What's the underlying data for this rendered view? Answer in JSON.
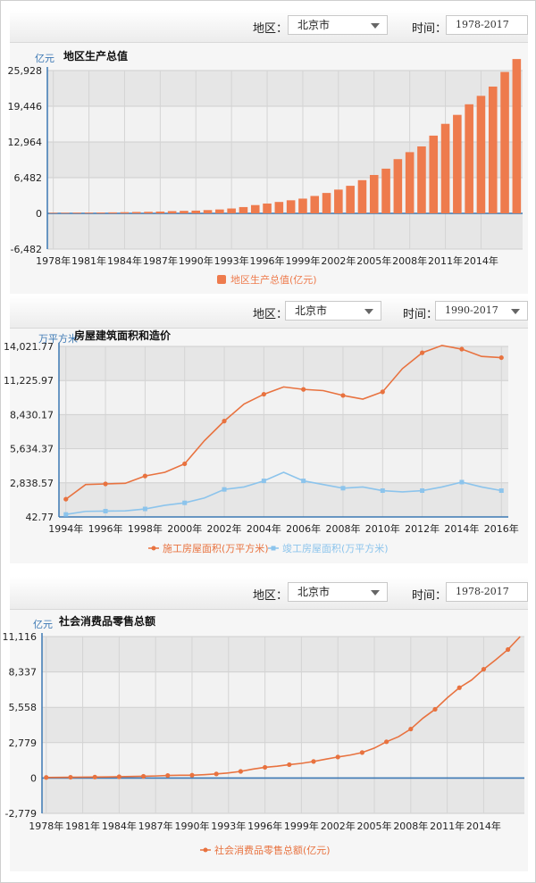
{
  "controls": {
    "region_label": "地区：",
    "region_value": "北京市",
    "time_label": "时间：",
    "range_1": "1978-2017",
    "range_2": "1990-2017",
    "range_3": "1978-2017"
  },
  "colors": {
    "orange": "#ee7b4d",
    "line_orange": "#e8723f",
    "blue": "#8cc4ec",
    "axis_blue": "#3c78b4",
    "grid_band": "#e6e6e6",
    "plot_bg": "#f2f2f2"
  },
  "chart_data": [
    {
      "type": "bar",
      "unit": "亿元",
      "title": "地区生产总值",
      "legend": [
        "地区生产总值(亿元)"
      ],
      "ylim": [
        -6482,
        25928
      ],
      "yticks": [
        -6482,
        0,
        6482,
        12964,
        19446,
        25928
      ],
      "ytick_labels": [
        "-6,482",
        "0",
        "6,482",
        "12,964",
        "19,446",
        "25,928"
      ],
      "xtick_labels": [
        "1978年",
        "1981年",
        "1984年",
        "1987年",
        "1990年",
        "1993年",
        "1996年",
        "1999年",
        "2002年",
        "2005年",
        "2008年",
        "2011年",
        "2014年"
      ],
      "x": [
        1978,
        1979,
        1980,
        1981,
        1982,
        1983,
        1984,
        1985,
        1986,
        1987,
        1988,
        1989,
        1990,
        1991,
        1992,
        1993,
        1994,
        1995,
        1996,
        1997,
        1998,
        1999,
        2000,
        2001,
        2002,
        2003,
        2004,
        2005,
        2006,
        2007,
        2008,
        2009,
        2010,
        2011,
        2012,
        2013,
        2014,
        2015,
        2016,
        2017
      ],
      "series": [
        {
          "name": "地区生产总值(亿元)",
          "values": [
            109,
            120,
            139,
            139,
            154,
            183,
            217,
            257,
            285,
            327,
            410,
            456,
            501,
            599,
            709,
            887,
            1146,
            1507,
            1789,
            2075,
            2377,
            2679,
            3162,
            3708,
            4316,
            5007,
            6033,
            6970,
            8118,
            9847,
            11115,
            12153,
            14114,
            16252,
            17879,
            19801,
            21331,
            23015,
            25669,
            28015
          ]
        }
      ]
    },
    {
      "type": "line",
      "unit": "万平方米",
      "title": "房屋建筑面积和造价",
      "legend": [
        "施工房屋面积(万平方米)",
        "竣工房屋面积(万平方米)"
      ],
      "ylim": [
        42.77,
        14021.77
      ],
      "yticks": [
        42.77,
        2838.57,
        5634.37,
        8430.17,
        11225.97,
        14021.77
      ],
      "ytick_labels": [
        "42.77",
        "2,838.57",
        "5,634.37",
        "8,430.17",
        "11,225.97",
        "14,021.77"
      ],
      "xtick_labels": [
        "1994年",
        "1996年",
        "1998年",
        "2000年",
        "2002年",
        "2004年",
        "2006年",
        "2008年",
        "2010年",
        "2012年",
        "2014年",
        "2016年"
      ],
      "x": [
        1994,
        1995,
        1996,
        1997,
        1998,
        1999,
        2000,
        2001,
        2002,
        2003,
        2004,
        2005,
        2006,
        2007,
        2008,
        2009,
        2010,
        2011,
        2012,
        2013,
        2014,
        2015,
        2016
      ],
      "series": [
        {
          "name": "施工房屋面积(万平方米)",
          "values": [
            1500,
            2700,
            2750,
            2800,
            3400,
            3700,
            4400,
            6300,
            7900,
            9300,
            10100,
            10700,
            10500,
            10400,
            10000,
            9700,
            10300,
            12200,
            13500,
            14100,
            13800,
            13200,
            13100
          ]
        },
        {
          "name": "竣工房屋面积(万平方米)",
          "values": [
            250,
            500,
            520,
            540,
            700,
            1000,
            1200,
            1600,
            2300,
            2500,
            3000,
            3700,
            3000,
            2700,
            2400,
            2500,
            2200,
            2100,
            2200,
            2500,
            2900,
            2500,
            2200
          ]
        }
      ]
    },
    {
      "type": "line",
      "unit": "亿元",
      "title": "社会消费品零售总额",
      "legend": [
        "社会消费品零售总额(亿元)"
      ],
      "ylim": [
        -2779,
        11116
      ],
      "yticks": [
        -2779,
        0,
        2779,
        5558,
        8337,
        11116
      ],
      "ytick_labels": [
        "-2,779",
        "0",
        "2,779",
        "5,558",
        "8,337",
        "11,116"
      ],
      "xtick_labels": [
        "1978年",
        "1981年",
        "1984年",
        "1987年",
        "1990年",
        "1993年",
        "1996年",
        "1999年",
        "2002年",
        "2005年",
        "2008年",
        "2011年",
        "2014年"
      ],
      "x": [
        1978,
        1979,
        1980,
        1981,
        1982,
        1983,
        1984,
        1985,
        1986,
        1987,
        1988,
        1989,
        1990,
        1991,
        1992,
        1993,
        1994,
        1995,
        1996,
        1997,
        1998,
        1999,
        2000,
        2001,
        2002,
        2003,
        2004,
        2005,
        2006,
        2007,
        2008,
        2009,
        2010,
        2011,
        2012,
        2013,
        2014,
        2015,
        2016,
        2017
      ],
      "series": [
        {
          "name": "社会消费品零售总额(亿元)",
          "values": [
            45,
            52,
            60,
            66,
            75,
            86,
            100,
            121,
            135,
            160,
            200,
            215,
            220,
            260,
            320,
            400,
            520,
            700,
            840,
            930,
            1050,
            1150,
            1300,
            1480,
            1650,
            1800,
            2000,
            2350,
            2850,
            3250,
            3850,
            4700,
            5400,
            6300,
            7100,
            7700,
            8550,
            9300,
            10100,
            11116
          ]
        }
      ]
    }
  ]
}
